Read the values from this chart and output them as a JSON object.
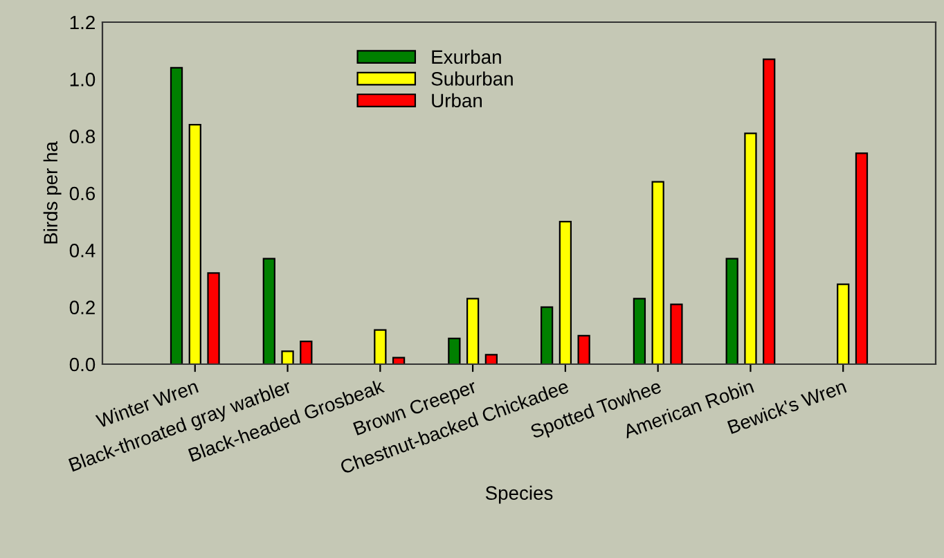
{
  "chart_data": {
    "type": "bar",
    "xlabel": "Species",
    "ylabel": "Birds per ha",
    "categories": [
      "Winter Wren",
      "Black-throated gray warbler",
      "Black-headed Grosbeak",
      "Brown Creeper",
      "Chestnut-backed Chickadee",
      "Spotted Towhee",
      "American Robin",
      "Bewick's Wren"
    ],
    "series": [
      {
        "name": "Exurban",
        "color": "#008000",
        "values": [
          1.04,
          0.37,
          null,
          0.09,
          0.2,
          0.23,
          0.37,
          null
        ]
      },
      {
        "name": "Suburban",
        "color": "#ffff00",
        "values": [
          0.84,
          0.045,
          0.12,
          0.23,
          0.5,
          0.64,
          0.81,
          0.28
        ]
      },
      {
        "name": "Urban",
        "color": "#ff0000",
        "values": [
          0.32,
          0.08,
          0.023,
          0.033,
          0.1,
          0.21,
          1.07,
          0.74
        ]
      }
    ],
    "ylim": [
      0,
      1.2
    ],
    "yticks": [
      {
        "value": 0,
        "label": "0.0"
      },
      0.2,
      0.4,
      0.6,
      0.8,
      {
        "value": 1,
        "label": "1.0"
      },
      1.2
    ],
    "grid": false,
    "legend": "top"
  }
}
